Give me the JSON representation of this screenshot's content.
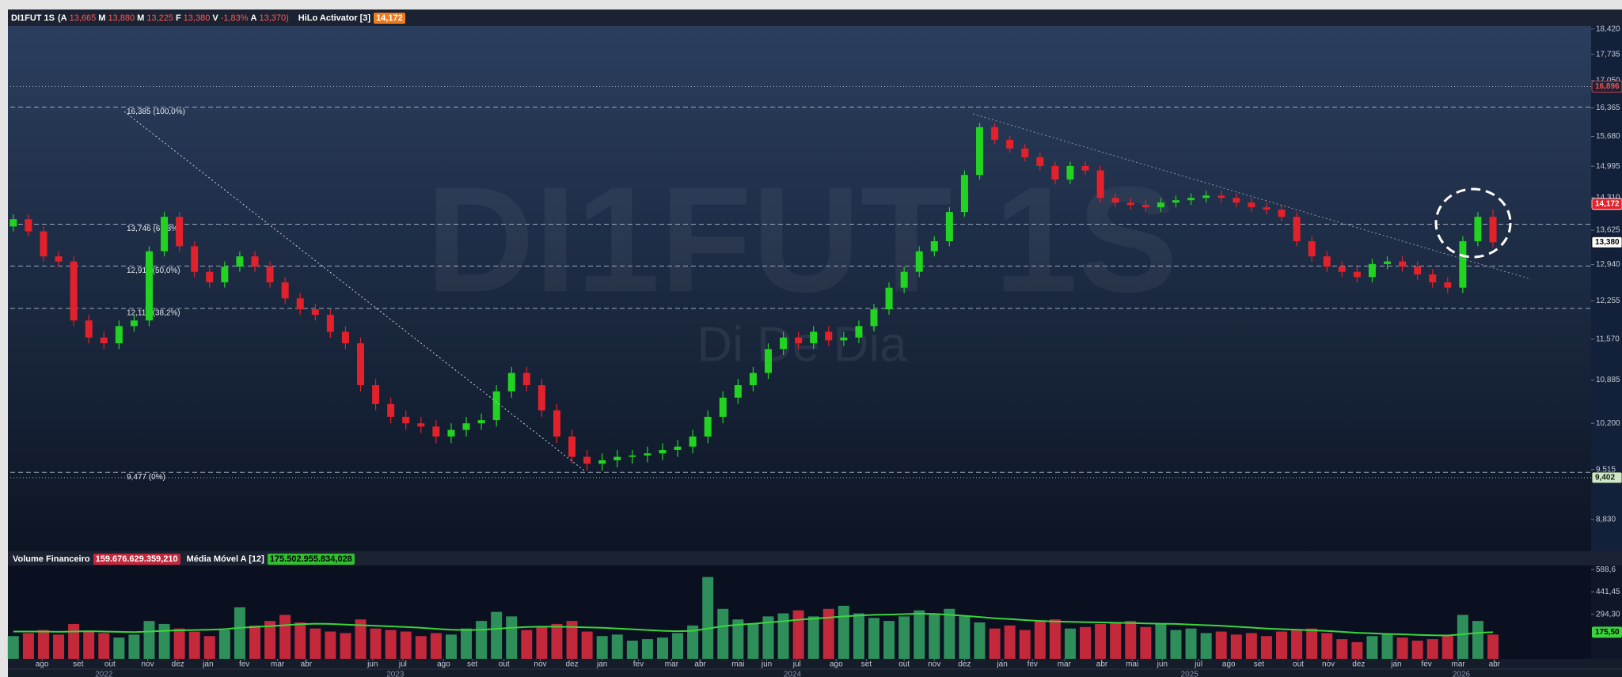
{
  "header": {
    "symbol": "DI1FUT 1S",
    "quote": [
      {
        "letter": "(A",
        "value": "13,665"
      },
      {
        "letter": "M",
        "value": "13,880"
      },
      {
        "letter": "M",
        "value": "13,225"
      },
      {
        "letter": "F",
        "value": "13,380"
      },
      {
        "letter": "V",
        "value": "-1,83%"
      },
      {
        "letter": "A",
        "value": "13,370)"
      }
    ],
    "indicator": "HiLo Activator [3]",
    "indicator_value": "14,172"
  },
  "chart_data": [
    {
      "type": "candlestick",
      "watermark": "DI1FUT 1S",
      "watermark_sub": "Di De Dia",
      "log_scale": true,
      "colors": {
        "up": "#22d322",
        "down": "#e3212b"
      },
      "xlim": [
        -0.2,
        104.5
      ],
      "ylim": [
        8.42,
        18.5
      ],
      "yticks": [
        {
          "value": 18.42,
          "label": "18,420"
        },
        {
          "value": 17.735,
          "label": "17,735"
        },
        {
          "value": 17.05,
          "label": "17,050"
        },
        {
          "value": 16.365,
          "label": "16,365"
        },
        {
          "value": 15.68,
          "label": "15,680"
        },
        {
          "value": 14.995,
          "label": "14,995"
        },
        {
          "value": 14.31,
          "label": "14,310"
        },
        {
          "value": 13.625,
          "label": "13,625"
        },
        {
          "value": 12.94,
          "label": "12,940"
        },
        {
          "value": 12.255,
          "label": "12,255"
        },
        {
          "value": 11.57,
          "label": "11,570"
        },
        {
          "value": 10.885,
          "label": "10,885"
        },
        {
          "value": 10.2,
          "label": "10,200"
        },
        {
          "value": 9.515,
          "label": "9,515"
        },
        {
          "value": 8.83,
          "label": "8,830"
        }
      ],
      "levels": [
        {
          "value": 16.385,
          "label": "16,385 (100,0%)"
        },
        {
          "value": 13.746,
          "label": "13,746 (61,8%)"
        },
        {
          "value": 12.911,
          "label": "12,911 (50,0%)"
        },
        {
          "value": 12.116,
          "label": "12,116 (38,2%)"
        },
        {
          "value": 9.477,
          "label": "9,477 (0%)"
        }
      ],
      "price_tags": [
        {
          "value": 16.896,
          "label": "16,896",
          "color": "#ff4b4b",
          "background": "#1a2436",
          "line": true
        },
        {
          "value": 14.172,
          "label": "14,172",
          "color": "#ffffff",
          "background": "#e3212b",
          "line": false
        },
        {
          "value": 13.38,
          "label": "13,380",
          "color": "#000000",
          "background": "#ffffff",
          "line": false
        },
        {
          "value": 9.402,
          "label": "9,402",
          "color": "#102010",
          "background": "#cfe6c8",
          "line": true
        }
      ],
      "open": [
        13.7,
        13.85,
        13.6,
        13.1,
        13.0,
        11.9,
        11.6,
        11.5,
        11.8,
        11.9,
        13.2,
        13.9,
        13.3,
        12.8,
        12.6,
        12.9,
        13.1,
        12.9,
        12.6,
        12.3,
        12.1,
        12.0,
        11.7,
        11.5,
        10.8,
        10.5,
        10.3,
        10.2,
        10.15,
        10.0,
        10.1,
        10.2,
        10.25,
        10.7,
        11.0,
        10.8,
        10.4,
        10.0,
        9.7,
        9.6,
        9.65,
        9.7,
        9.72,
        9.75,
        9.8,
        9.85,
        10.0,
        10.3,
        10.6,
        10.8,
        11.0,
        11.4,
        11.6,
        11.5,
        11.7,
        11.55,
        11.6,
        11.8,
        12.1,
        12.5,
        12.8,
        13.2,
        13.4,
        14.0,
        14.8,
        15.9,
        15.6,
        15.4,
        15.2,
        15.0,
        14.7,
        15.0,
        14.9,
        14.3,
        14.2,
        14.15,
        14.1,
        14.2,
        14.25,
        14.3,
        14.35,
        14.3,
        14.2,
        14.1,
        14.05,
        13.9,
        13.4,
        13.1,
        12.9,
        12.8,
        12.7,
        12.95,
        13.0,
        12.9,
        12.75,
        12.6,
        12.5,
        13.4,
        13.9
      ],
      "high": [
        13.95,
        13.95,
        13.7,
        13.2,
        13.1,
        12.0,
        11.7,
        11.9,
        12.0,
        13.3,
        14.0,
        14.0,
        13.4,
        12.9,
        13.0,
        13.2,
        13.2,
        13.0,
        12.7,
        12.4,
        12.2,
        12.1,
        11.8,
        11.6,
        10.9,
        10.6,
        10.4,
        10.3,
        10.25,
        10.2,
        10.3,
        10.35,
        10.8,
        11.1,
        11.1,
        10.9,
        10.5,
        10.1,
        9.8,
        9.75,
        9.8,
        9.8,
        9.85,
        9.9,
        9.95,
        10.1,
        10.4,
        10.7,
        10.9,
        11.1,
        11.5,
        11.7,
        11.7,
        11.8,
        11.8,
        11.7,
        11.9,
        12.2,
        12.6,
        12.9,
        13.3,
        13.5,
        14.1,
        14.9,
        16.0,
        16.0,
        15.7,
        15.5,
        15.3,
        15.1,
        15.1,
        15.1,
        15.0,
        14.4,
        14.3,
        14.25,
        14.3,
        14.35,
        14.4,
        14.45,
        14.45,
        14.4,
        14.3,
        14.2,
        14.15,
        14.0,
        13.5,
        13.2,
        13.0,
        12.9,
        13.05,
        13.1,
        13.1,
        13.0,
        12.85,
        12.7,
        13.5,
        14.0,
        14.05
      ],
      "low": [
        13.6,
        13.5,
        13.0,
        12.9,
        11.8,
        11.5,
        11.4,
        11.4,
        11.7,
        11.8,
        13.1,
        13.2,
        12.7,
        12.5,
        12.5,
        12.8,
        12.8,
        12.5,
        12.2,
        12.0,
        11.9,
        11.6,
        11.4,
        10.7,
        10.4,
        10.2,
        10.1,
        10.05,
        9.9,
        9.9,
        10.0,
        10.1,
        10.15,
        10.6,
        10.7,
        10.3,
        9.9,
        9.6,
        9.5,
        9.5,
        9.55,
        9.6,
        9.62,
        9.65,
        9.7,
        9.75,
        9.9,
        10.2,
        10.5,
        10.7,
        10.9,
        11.3,
        11.4,
        11.4,
        11.45,
        11.45,
        11.5,
        11.7,
        12.0,
        12.4,
        12.7,
        13.1,
        13.3,
        13.9,
        14.7,
        15.5,
        15.3,
        15.1,
        14.9,
        14.6,
        14.6,
        14.8,
        14.2,
        14.1,
        14.05,
        14.0,
        14.0,
        14.1,
        14.15,
        14.2,
        14.2,
        14.1,
        14.0,
        13.95,
        13.8,
        13.3,
        13.0,
        12.8,
        12.7,
        12.6,
        12.6,
        12.85,
        12.8,
        12.65,
        12.5,
        12.4,
        12.4,
        13.3,
        13.28
      ],
      "close": [
        13.85,
        13.6,
        13.1,
        13.0,
        11.9,
        11.6,
        11.5,
        11.8,
        11.9,
        13.2,
        13.9,
        13.3,
        12.8,
        12.6,
        12.9,
        13.1,
        12.9,
        12.6,
        12.3,
        12.1,
        12.0,
        11.7,
        11.5,
        10.8,
        10.5,
        10.3,
        10.2,
        10.15,
        10.0,
        10.1,
        10.2,
        10.25,
        10.7,
        11.0,
        10.8,
        10.4,
        10.0,
        9.7,
        9.6,
        9.65,
        9.7,
        9.72,
        9.75,
        9.8,
        9.85,
        10.0,
        10.3,
        10.6,
        10.8,
        11.0,
        11.4,
        11.6,
        11.5,
        11.7,
        11.55,
        11.6,
        11.8,
        12.1,
        12.5,
        12.8,
        13.2,
        13.4,
        14.0,
        14.8,
        15.9,
        15.6,
        15.4,
        15.2,
        15.0,
        14.7,
        15.0,
        14.9,
        14.3,
        14.2,
        14.15,
        14.1,
        14.2,
        14.25,
        14.3,
        14.35,
        14.3,
        14.2,
        14.1,
        14.05,
        13.9,
        13.4,
        13.1,
        12.9,
        12.8,
        12.7,
        12.95,
        13.0,
        12.9,
        12.75,
        12.6,
        12.5,
        13.4,
        13.9,
        13.38
      ]
    },
    {
      "type": "bar",
      "colors": {
        "up": "#2f8f5b",
        "down": "#c3283b"
      },
      "xlim": [
        -0.2,
        104.5
      ],
      "ylim": [
        0,
        616
      ],
      "yticks": [
        {
          "value": 588.6,
          "label": "588,6"
        },
        {
          "value": 441.45,
          "label": "441,45"
        },
        {
          "value": 294.3,
          "label": "294,30"
        }
      ],
      "xticks": [
        {
          "value": 1.9,
          "label": "ago"
        },
        {
          "value": 4.3,
          "label": "set"
        },
        {
          "value": 6.4,
          "label": "out"
        },
        {
          "value": 8.9,
          "label": "nov"
        },
        {
          "value": 10.9,
          "label": "dez"
        },
        {
          "value": 12.9,
          "label": "jan"
        },
        {
          "value": 15.3,
          "label": "fev"
        },
        {
          "value": 17.5,
          "label": "mar"
        },
        {
          "value": 19.4,
          "label": "abr"
        },
        {
          "value": 23.8,
          "label": "jun"
        },
        {
          "value": 25.8,
          "label": "jul"
        },
        {
          "value": 28.5,
          "label": "ago"
        },
        {
          "value": 30.4,
          "label": "set"
        },
        {
          "value": 32.5,
          "label": "out"
        },
        {
          "value": 34.9,
          "label": "nov"
        },
        {
          "value": 37.0,
          "label": "dez"
        },
        {
          "value": 39.0,
          "label": "jan"
        },
        {
          "value": 41.4,
          "label": "fev"
        },
        {
          "value": 43.6,
          "label": "mar"
        },
        {
          "value": 45.5,
          "label": "abr"
        },
        {
          "value": 48.0,
          "label": "mai"
        },
        {
          "value": 49.9,
          "label": "jun"
        },
        {
          "value": 51.9,
          "label": "jul"
        },
        {
          "value": 54.5,
          "label": "ago"
        },
        {
          "value": 56.5,
          "label": "set"
        },
        {
          "value": 59.0,
          "label": "out"
        },
        {
          "value": 61.0,
          "label": "nov"
        },
        {
          "value": 63.0,
          "label": "dez"
        },
        {
          "value": 65.5,
          "label": "jan"
        },
        {
          "value": 67.5,
          "label": "fev"
        },
        {
          "value": 69.6,
          "label": "mar"
        },
        {
          "value": 72.1,
          "label": "abr"
        },
        {
          "value": 74.1,
          "label": "mai"
        },
        {
          "value": 76.1,
          "label": "jun"
        },
        {
          "value": 78.5,
          "label": "jul"
        },
        {
          "value": 80.5,
          "label": "ago"
        },
        {
          "value": 82.5,
          "label": "set"
        },
        {
          "value": 85.1,
          "label": "out"
        },
        {
          "value": 87.1,
          "label": "nov"
        },
        {
          "value": 89.1,
          "label": "dez"
        },
        {
          "value": 91.6,
          "label": "jan"
        },
        {
          "value": 93.6,
          "label": "fev"
        },
        {
          "value": 95.7,
          "label": "mar"
        },
        {
          "value": 98.1,
          "label": "abr"
        }
      ],
      "yearticks": [
        {
          "value": 6.0,
          "label": "2022"
        },
        {
          "value": 25.3,
          "label": "2023"
        },
        {
          "value": 51.6,
          "label": "2024"
        },
        {
          "value": 77.9,
          "label": "2025"
        },
        {
          "value": 95.9,
          "label": "2026"
        }
      ],
      "series": [
        {
          "name": "Volume Financeiro",
          "current": "159.676.629.359,210",
          "values": [
            150,
            170,
            190,
            160,
            230,
            180,
            170,
            140,
            160,
            250,
            230,
            200,
            180,
            150,
            190,
            340,
            220,
            250,
            290,
            240,
            200,
            180,
            170,
            260,
            200,
            190,
            180,
            150,
            170,
            160,
            200,
            250,
            310,
            280,
            190,
            210,
            230,
            250,
            180,
            150,
            160,
            120,
            130,
            140,
            170,
            220,
            540,
            330,
            260,
            230,
            280,
            300,
            320,
            280,
            330,
            350,
            300,
            270,
            250,
            280,
            320,
            300,
            330,
            280,
            240,
            200,
            220,
            190,
            250,
            260,
            200,
            210,
            230,
            240,
            250,
            210,
            230,
            190,
            200,
            170,
            180,
            160,
            170,
            150,
            180,
            190,
            200,
            170,
            130,
            110,
            150,
            160,
            140,
            120,
            130,
            150,
            290,
            250,
            160
          ]
        },
        {
          "name": "Média Móvel A [12]",
          "current": "175.502.955.834,028",
          "color": "#3cd43c",
          "tag": {
            "value": 175.5,
            "label": "175,50"
          },
          "values": [
            180,
            180,
            180,
            178,
            180,
            182,
            180,
            178,
            176,
            180,
            185,
            188,
            190,
            192,
            196,
            205,
            210,
            215,
            222,
            228,
            232,
            230,
            226,
            222,
            218,
            214,
            210,
            205,
            198,
            192,
            190,
            192,
            198,
            205,
            210,
            212,
            212,
            210,
            208,
            205,
            200,
            195,
            190,
            185,
            182,
            185,
            200,
            215,
            225,
            232,
            240,
            248,
            258,
            265,
            272,
            280,
            286,
            290,
            292,
            295,
            298,
            296,
            290,
            284,
            276,
            268,
            262,
            256,
            250,
            246,
            244,
            242,
            240,
            238,
            236,
            234,
            232,
            230,
            226,
            222,
            218,
            212,
            206,
            200,
            196,
            192,
            188,
            184,
            178,
            172,
            168,
            164,
            162,
            158,
            155,
            154,
            162,
            172,
            175.5
          ]
        }
      ]
    }
  ]
}
